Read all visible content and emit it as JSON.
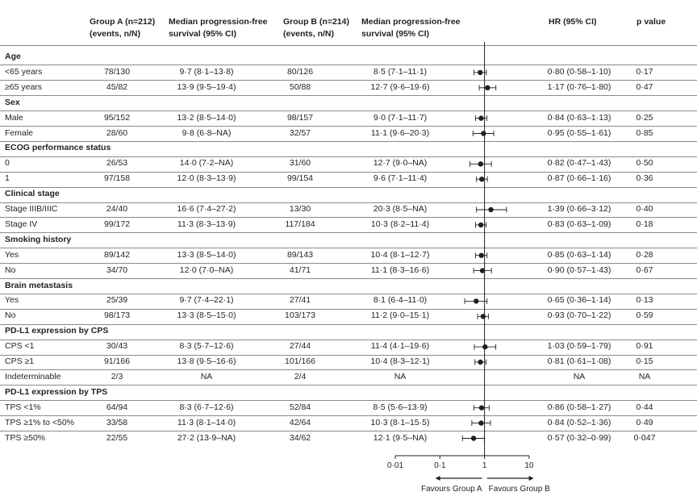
{
  "headers": {
    "group_a": "Group A (n=212)",
    "group_a_sub": "(events, n/N)",
    "mpfs_a": "Median progression-free",
    "mpfs_a_sub": "survival (95% CI)",
    "group_b": "Group B (n=214)",
    "group_b_sub": "(events, n/N)",
    "mpfs_b": "Median progression-free",
    "mpfs_b_sub": "survival (95% CI)",
    "hr": "HR (95% CI)",
    "p": "p value"
  },
  "rows": [
    {
      "type": "section",
      "label": "Age"
    },
    {
      "type": "row",
      "label": "<65 years",
      "a": "78/130",
      "am": "9·7 (8·1–13·8)",
      "b": "80/126",
      "bm": "8·5 (7·1–11·1)",
      "hr": "0·80 (0·58–1·10)",
      "p": "0·17",
      "hr_val": 0.8,
      "lo": 0.58,
      "hi": 1.1
    },
    {
      "type": "row",
      "label": "≥65 years",
      "a": "45/82",
      "am": "13·9 (9·5–19·4)",
      "b": "50/88",
      "bm": "12·7 (9·6–19·6)",
      "hr": "1·17 (0·76–1·80)",
      "p": "0·47",
      "hr_val": 1.17,
      "lo": 0.76,
      "hi": 1.8
    },
    {
      "type": "section",
      "label": "Sex"
    },
    {
      "type": "row",
      "label": "Male",
      "a": "95/152",
      "am": "13·2 (8·5–14·0)",
      "b": "98/157",
      "bm": "9·0 (7·1–11·7)",
      "hr": "0·84 (0·63–1·13)",
      "p": "0·25",
      "hr_val": 0.84,
      "lo": 0.63,
      "hi": 1.13
    },
    {
      "type": "row",
      "label": "Female",
      "a": "28/60",
      "am": "9·8 (6·8–NA)",
      "b": "32/57",
      "bm": "11·1 (9·6–20·3)",
      "hr": "0·95 (0·55–1·61)",
      "p": "0·85",
      "hr_val": 0.95,
      "lo": 0.55,
      "hi": 1.61
    },
    {
      "type": "section",
      "label": "ECOG performance status"
    },
    {
      "type": "row",
      "label": "0",
      "a": "26/53",
      "am": "14·0 (7·2–NA)",
      "b": "31/60",
      "bm": "12·7 (9·0–NA)",
      "hr": "0·82 (0·47–1·43)",
      "p": "0·50",
      "hr_val": 0.82,
      "lo": 0.47,
      "hi": 1.43
    },
    {
      "type": "row",
      "label": "1",
      "a": "97/158",
      "am": "12·0 (8·3–13·9)",
      "b": "99/154",
      "bm": "9·6 (7·1–11·4)",
      "hr": "0·87 (0·66–1·16)",
      "p": "0·36",
      "hr_val": 0.87,
      "lo": 0.66,
      "hi": 1.16
    },
    {
      "type": "section",
      "label": "Clinical stage"
    },
    {
      "type": "row",
      "label": "Stage IIIB/IIIC",
      "a": "24/40",
      "am": "16·6 (7·4–27·2)",
      "b": "13/30",
      "bm": "20·3 (8·5–NA)",
      "hr": "1·39 (0·66–3·12)",
      "p": "0·40",
      "hr_val": 1.39,
      "lo": 0.66,
      "hi": 3.12
    },
    {
      "type": "row",
      "label": "Stage IV",
      "a": "99/172",
      "am": "11·3 (8·3–13·9)",
      "b": "117/184",
      "bm": "10·3 (8·2–11·4)",
      "hr": "0·83 (0·63–1·09)",
      "p": "0·18",
      "hr_val": 0.83,
      "lo": 0.63,
      "hi": 1.09
    },
    {
      "type": "section",
      "label": "Smoking history"
    },
    {
      "type": "row",
      "label": "Yes",
      "a": "89/142",
      "am": "13·3 (8·5–14·0)",
      "b": "89/143",
      "bm": "10·4 (8·1–12·7)",
      "hr": "0·85 (0·63–1·14)",
      "p": "0·28",
      "hr_val": 0.85,
      "lo": 0.63,
      "hi": 1.14
    },
    {
      "type": "row",
      "label": "No",
      "a": "34/70",
      "am": "12·0 (7·0–NA)",
      "b": "41/71",
      "bm": "11·1 (8·3–16·6)",
      "hr": "0·90 (0·57–1·43)",
      "p": "0·67",
      "hr_val": 0.9,
      "lo": 0.57,
      "hi": 1.43
    },
    {
      "type": "section",
      "label": "Brain metastasis"
    },
    {
      "type": "row",
      "label": "Yes",
      "a": "25/39",
      "am": "9·7 (7·4–22·1)",
      "b": "27/41",
      "bm": "8·1 (6·4–11·0)",
      "hr": "0·65 (0·36–1·14)",
      "p": "0·13",
      "hr_val": 0.65,
      "lo": 0.36,
      "hi": 1.14
    },
    {
      "type": "row",
      "label": "No",
      "a": "98/173",
      "am": "13·3 (8·5–15·0)",
      "b": "103/173",
      "bm": "11·2 (9·0–15·1)",
      "hr": "0·93 (0·70–1·22)",
      "p": "0·59",
      "hr_val": 0.93,
      "lo": 0.7,
      "hi": 1.22
    },
    {
      "type": "section",
      "label": "PD-L1 expression by CPS"
    },
    {
      "type": "row",
      "label": "CPS <1",
      "a": "30/43",
      "am": "8·3 (5·7–12·6)",
      "b": "27/44",
      "bm": "11·4 (4·1–19·6)",
      "hr": "1·03 (0·59–1·79)",
      "p": "0·91",
      "hr_val": 1.03,
      "lo": 0.59,
      "hi": 1.79
    },
    {
      "type": "row",
      "label": "CPS ≥1",
      "a": "91/166",
      "am": "13·8 (9·5–16·6)",
      "b": "101/166",
      "bm": "10·4 (8·3–12·1)",
      "hr": "0·81 (0·61–1·08)",
      "p": "0·15",
      "hr_val": 0.81,
      "lo": 0.61,
      "hi": 1.08
    },
    {
      "type": "row",
      "label": "Indeterminable",
      "a": "2/3",
      "am": "NA",
      "b": "2/4",
      "bm": "NA",
      "hr": "NA",
      "p": "NA",
      "hr_val": null,
      "lo": null,
      "hi": null
    },
    {
      "type": "section",
      "label": "PD-L1 expression by TPS"
    },
    {
      "type": "row",
      "label": "TPS <1%",
      "a": "64/94",
      "am": "8·3 (6·7–12·6)",
      "b": "52/84",
      "bm": "8·5 (5·6–13·9)",
      "hr": "0·86 (0·58–1·27)",
      "p": "0·44",
      "hr_val": 0.86,
      "lo": 0.58,
      "hi": 1.27
    },
    {
      "type": "row",
      "label": "TPS ≥1% to <50%",
      "a": "33/58",
      "am": "11·3 (8·1–14·0)",
      "b": "42/64",
      "bm": "10·3 (8·1–15·5)",
      "hr": "0·84 (0·52–1·36)",
      "p": "0·49",
      "hr_val": 0.84,
      "lo": 0.52,
      "hi": 1.36
    },
    {
      "type": "row",
      "label": "TPS ≥50%",
      "a": "22/55",
      "am": "27·2 (13·9–NA)",
      "b": "34/62",
      "bm": "12·1 (9·5–NA)",
      "hr": "0·57 (0·32–0·99)",
      "p": "0·047",
      "hr_val": 0.57,
      "lo": 0.32,
      "hi": 0.99
    }
  ],
  "axis": {
    "ticks": [
      0.01,
      0.1,
      1,
      10
    ],
    "tick_labels": [
      "0·01",
      "0·1",
      "1",
      "10"
    ],
    "favours_a": "Favours Group A",
    "favours_b": "Favours Group B"
  },
  "chart_data": {
    "type": "scatter",
    "title": "",
    "xlabel": "",
    "scale": "log",
    "xlim": [
      0.01,
      10
    ],
    "reference_line": 1,
    "series": [
      {
        "name": "<65 years",
        "hr": 0.8,
        "ci": [
          0.58,
          1.1
        ]
      },
      {
        "name": "≥65 years",
        "hr": 1.17,
        "ci": [
          0.76,
          1.8
        ]
      },
      {
        "name": "Male",
        "hr": 0.84,
        "ci": [
          0.63,
          1.13
        ]
      },
      {
        "name": "Female",
        "hr": 0.95,
        "ci": [
          0.55,
          1.61
        ]
      },
      {
        "name": "ECOG 0",
        "hr": 0.82,
        "ci": [
          0.47,
          1.43
        ]
      },
      {
        "name": "ECOG 1",
        "hr": 0.87,
        "ci": [
          0.66,
          1.16
        ]
      },
      {
        "name": "Stage IIIB/IIIC",
        "hr": 1.39,
        "ci": [
          0.66,
          3.12
        ]
      },
      {
        "name": "Stage IV",
        "hr": 0.83,
        "ci": [
          0.63,
          1.09
        ]
      },
      {
        "name": "Smoking Yes",
        "hr": 0.85,
        "ci": [
          0.63,
          1.14
        ]
      },
      {
        "name": "Smoking No",
        "hr": 0.9,
        "ci": [
          0.57,
          1.43
        ]
      },
      {
        "name": "Brain metastasis Yes",
        "hr": 0.65,
        "ci": [
          0.36,
          1.14
        ]
      },
      {
        "name": "Brain metastasis No",
        "hr": 0.93,
        "ci": [
          0.7,
          1.22
        ]
      },
      {
        "name": "CPS <1",
        "hr": 1.03,
        "ci": [
          0.59,
          1.79
        ]
      },
      {
        "name": "CPS ≥1",
        "hr": 0.81,
        "ci": [
          0.61,
          1.08
        ]
      },
      {
        "name": "TPS <1%",
        "hr": 0.86,
        "ci": [
          0.58,
          1.27
        ]
      },
      {
        "name": "TPS ≥1% to <50%",
        "hr": 0.84,
        "ci": [
          0.52,
          1.36
        ]
      },
      {
        "name": "TPS ≥50%",
        "hr": 0.57,
        "ci": [
          0.32,
          0.99
        ]
      }
    ]
  }
}
